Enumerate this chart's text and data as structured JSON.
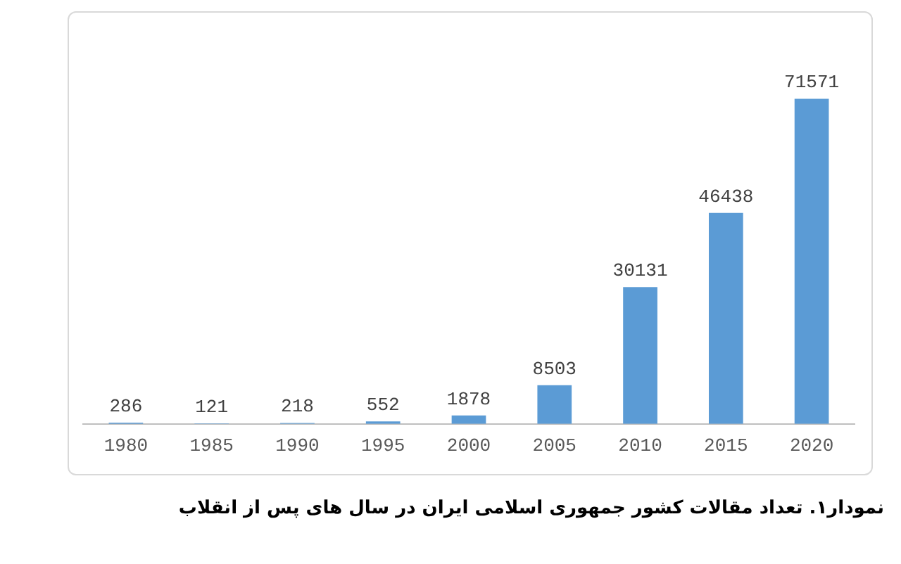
{
  "chart_data": {
    "type": "bar",
    "categories": [
      "1980",
      "1985",
      "1990",
      "1995",
      "2000",
      "2005",
      "2010",
      "2015",
      "2020"
    ],
    "values": [
      286,
      121,
      218,
      552,
      1878,
      8503,
      30131,
      46438,
      71571
    ],
    "color": "#5b9bd5",
    "data_labels": true,
    "annotations": [
      "نمودار۱. تعداد مقالات کشور جمهوری اسلامی ایران در سال های پس از انقلاب"
    ]
  }
}
